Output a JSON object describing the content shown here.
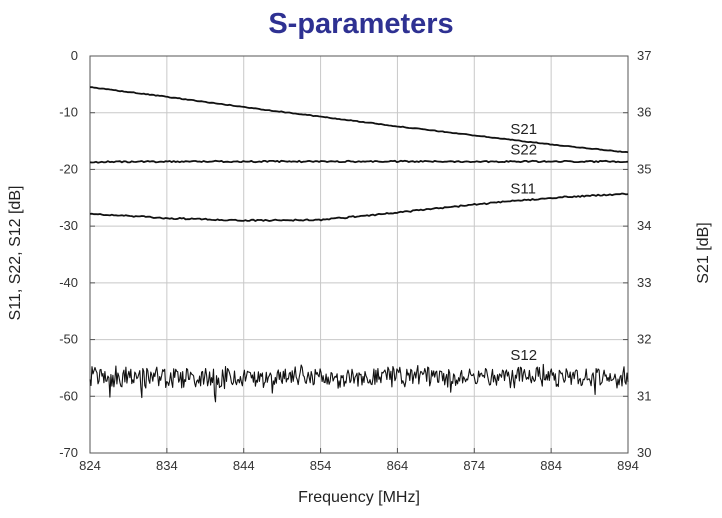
{
  "chart_data": {
    "type": "line",
    "title": "S-parameters",
    "title_color": "#2E3192",
    "xlabel": "Frequency [MHz]",
    "ylabel_left": "S11, S22, S12 [dB]",
    "ylabel_right": "S21 [dB]",
    "xlim": [
      824,
      894
    ],
    "ylim_left": [
      -70,
      0
    ],
    "ylim_right": [
      30,
      37
    ],
    "x_ticks": [
      "824",
      "834",
      "844",
      "854",
      "864",
      "874",
      "884",
      "894"
    ],
    "y_left_ticks": [
      "0",
      "-10",
      "-20",
      "-30",
      "-40",
      "-50",
      "-60",
      "-70"
    ],
    "y_right_ticks": [
      "37",
      "36",
      "35",
      "34",
      "33",
      "32",
      "31",
      "30"
    ],
    "grid": true,
    "line_color": "#111111",
    "series": [
      {
        "name": "S21",
        "axis": "right",
        "x": [
          824,
          834,
          844,
          854,
          864,
          874,
          884,
          894
        ],
        "values": [
          36.45,
          36.28,
          36.1,
          35.93,
          35.76,
          35.6,
          35.44,
          35.3
        ]
      },
      {
        "name": "S22",
        "axis": "left",
        "x": [
          824,
          834,
          844,
          854,
          864,
          874,
          884,
          894
        ],
        "values": [
          -18.7,
          -18.6,
          -18.6,
          -18.6,
          -18.6,
          -18.6,
          -18.6,
          -18.6
        ]
      },
      {
        "name": "S11",
        "axis": "left",
        "x": [
          824,
          834,
          844,
          854,
          864,
          874,
          884,
          894
        ],
        "values": [
          -27.8,
          -28.6,
          -29.0,
          -28.9,
          -27.6,
          -26.2,
          -25.0,
          -24.3
        ]
      },
      {
        "name": "S12",
        "axis": "left",
        "noisy": true,
        "noise_amplitude_db": 2.0,
        "x": [
          824,
          834,
          844,
          854,
          864,
          874,
          884,
          894
        ],
        "values": [
          -56.5,
          -56.7,
          -56.5,
          -56.7,
          -56.6,
          -56.7,
          -56.3,
          -56.5
        ]
      }
    ]
  }
}
